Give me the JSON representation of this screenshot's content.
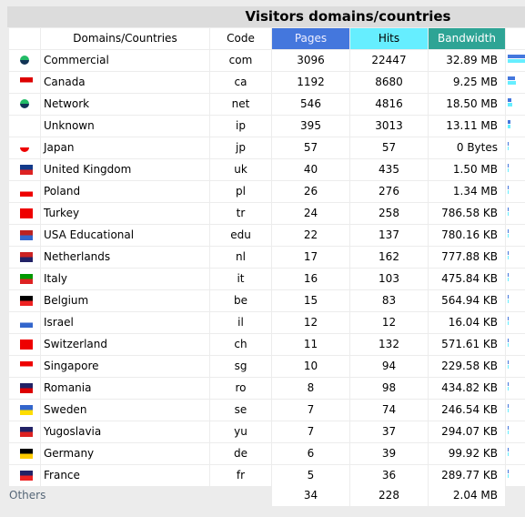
{
  "title": "Visitors domains/countries",
  "table": {
    "headers": {
      "domain": "Domains/Countries",
      "code": "Code",
      "pages": "Pages",
      "hits": "Hits",
      "bandwidth": "Bandwidth"
    },
    "rows": [
      {
        "name": "Commercial",
        "code": "com",
        "pages": 3096,
        "hits": 22447,
        "bandwidth": "32.89 MB"
      },
      {
        "name": "Canada",
        "code": "ca",
        "pages": 1192,
        "hits": 8680,
        "bandwidth": "9.25 MB"
      },
      {
        "name": "Network",
        "code": "net",
        "pages": 546,
        "hits": 4816,
        "bandwidth": "18.50 MB"
      },
      {
        "name": "Unknown",
        "code": "ip",
        "pages": 395,
        "hits": 3013,
        "bandwidth": "13.11 MB"
      },
      {
        "name": "Japan",
        "code": "jp",
        "pages": 57,
        "hits": 57,
        "bandwidth": "0 Bytes"
      },
      {
        "name": "United Kingdom",
        "code": "uk",
        "pages": 40,
        "hits": 435,
        "bandwidth": "1.50 MB"
      },
      {
        "name": "Poland",
        "code": "pl",
        "pages": 26,
        "hits": 276,
        "bandwidth": "1.34 MB"
      },
      {
        "name": "Turkey",
        "code": "tr",
        "pages": 24,
        "hits": 258,
        "bandwidth": "786.58 KB"
      },
      {
        "name": "USA Educational",
        "code": "edu",
        "pages": 22,
        "hits": 137,
        "bandwidth": "780.16 KB"
      },
      {
        "name": "Netherlands",
        "code": "nl",
        "pages": 17,
        "hits": 162,
        "bandwidth": "777.88 KB"
      },
      {
        "name": "Italy",
        "code": "it",
        "pages": 16,
        "hits": 103,
        "bandwidth": "475.84 KB"
      },
      {
        "name": "Belgium",
        "code": "be",
        "pages": 15,
        "hits": 83,
        "bandwidth": "564.94 KB"
      },
      {
        "name": "Israel",
        "code": "il",
        "pages": 12,
        "hits": 12,
        "bandwidth": "16.04 KB"
      },
      {
        "name": "Switzerland",
        "code": "ch",
        "pages": 11,
        "hits": 132,
        "bandwidth": "571.61 KB"
      },
      {
        "name": "Singapore",
        "code": "sg",
        "pages": 10,
        "hits": 94,
        "bandwidth": "229.58 KB"
      },
      {
        "name": "Romania",
        "code": "ro",
        "pages": 8,
        "hits": 98,
        "bandwidth": "434.82 KB"
      },
      {
        "name": "Sweden",
        "code": "se",
        "pages": 7,
        "hits": 74,
        "bandwidth": "246.54 KB"
      },
      {
        "name": "Yugoslavia",
        "code": "yu",
        "pages": 7,
        "hits": 37,
        "bandwidth": "294.07 KB"
      },
      {
        "name": "Germany",
        "code": "de",
        "pages": 6,
        "hits": 39,
        "bandwidth": "99.92 KB"
      },
      {
        "name": "France",
        "code": "fr",
        "pages": 5,
        "hits": 36,
        "bandwidth": "289.77 KB"
      }
    ],
    "others": {
      "name": "Others",
      "pages": 34,
      "hits": 228,
      "bandwidth": "2.04 MB"
    }
  }
}
